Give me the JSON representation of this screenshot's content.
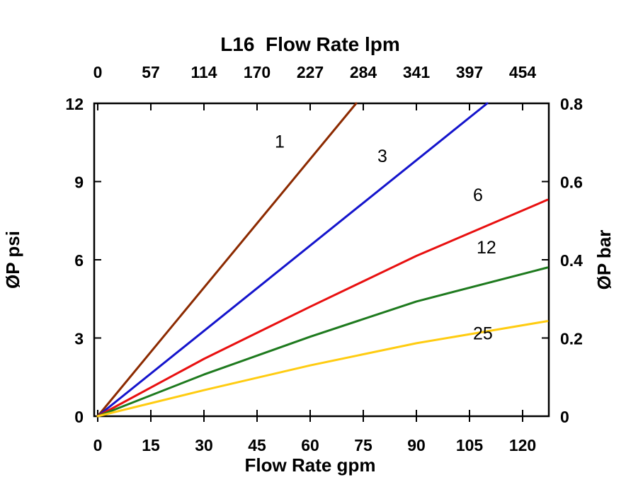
{
  "chart_data": {
    "type": "line",
    "title": "L16  Flow Rate lpm",
    "top_axis": {
      "label": "L16  Flow Rate lpm",
      "ticks": [
        0,
        57,
        114,
        170,
        227,
        284,
        341,
        397,
        454
      ]
    },
    "bottom_axis": {
      "label": "Flow Rate gpm",
      "ticks": [
        0,
        15,
        30,
        45,
        60,
        75,
        90,
        105,
        120
      ],
      "range": [
        0,
        127.4
      ]
    },
    "left_axis": {
      "label": "ØP psi",
      "ticks": [
        0,
        3,
        6,
        9,
        12
      ],
      "range": [
        0,
        12
      ]
    },
    "right_axis": {
      "label": "ØP bar",
      "ticks": [
        0,
        0.2,
        0.4,
        0.6,
        0.8
      ],
      "range": [
        0,
        0.8
      ]
    },
    "grid": "off",
    "legend": "inline-labels",
    "series": [
      {
        "name": "1",
        "color": "#8c2a00",
        "points": [
          [
            0,
            0
          ],
          [
            73,
            12
          ]
        ],
        "label_pos": [
          50,
          10.3
        ]
      },
      {
        "name": "3",
        "color": "#1414cc",
        "points": [
          [
            0,
            0
          ],
          [
            110,
            12
          ]
        ],
        "label_pos": [
          79,
          9.75
        ]
      },
      {
        "name": "6",
        "color": "#e81010",
        "points": [
          [
            0,
            0
          ],
          [
            30,
            2.2
          ],
          [
            60,
            4.2
          ],
          [
            90,
            6.15
          ],
          [
            127,
            8.3
          ]
        ],
        "label_pos": [
          106,
          8.25
        ]
      },
      {
        "name": "12",
        "color": "#1e7a1e",
        "points": [
          [
            0,
            0
          ],
          [
            30,
            1.6
          ],
          [
            60,
            3.05
          ],
          [
            90,
            4.4
          ],
          [
            127,
            5.7
          ]
        ],
        "label_pos": [
          107,
          6.25
        ]
      },
      {
        "name": "25",
        "color": "#ffcc11",
        "points": [
          [
            0,
            0
          ],
          [
            30,
            1.0
          ],
          [
            60,
            1.95
          ],
          [
            90,
            2.8
          ],
          [
            127,
            3.65
          ]
        ],
        "label_pos": [
          106,
          2.95
        ]
      }
    ]
  }
}
